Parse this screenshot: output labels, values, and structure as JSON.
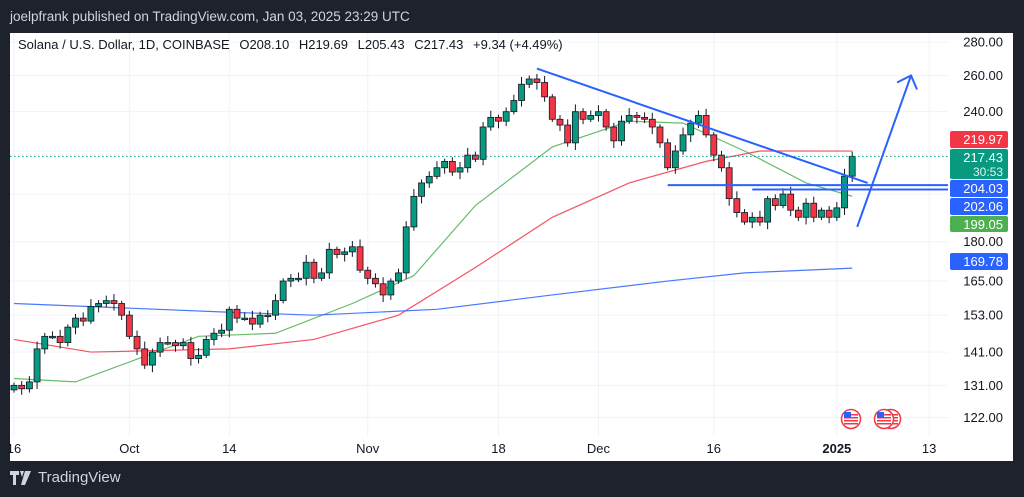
{
  "publisher_line": "joelpfrank published on TradingView.com, Jan 03, 2025 23:29 UTC",
  "legend": {
    "symbol": "Solana / U.S. Dollar, 1D, COINBASE",
    "open": "O208.10",
    "high": "H219.69",
    "low": "L205.43",
    "close": "C217.43",
    "change": "+9.34 (+4.49%)"
  },
  "footer": {
    "brand": "TradingView"
  },
  "colors": {
    "up": "#089981",
    "down": "#f23645",
    "ma_fast": "#4caf50",
    "ma_mid": "#f23645",
    "ma_slow": "#2962ff",
    "drawing": "#2962ff"
  },
  "chart_data": {
    "type": "candlestick",
    "scale": "log",
    "ylim": [
      118,
      290
    ],
    "grid": true,
    "first_date": "2024-09-16",
    "closes": [
      131,
      130,
      132,
      142,
      146,
      146,
      144,
      149,
      152,
      151,
      156,
      157,
      158,
      157,
      153,
      146,
      142,
      137,
      141,
      144,
      144,
      143,
      144,
      139,
      140,
      145,
      147,
      148,
      155,
      152,
      152,
      150,
      153,
      153,
      158,
      165,
      166,
      166,
      172,
      166,
      168,
      177,
      175,
      176,
      178,
      169,
      166,
      164,
      160,
      165,
      168,
      186,
      199,
      205,
      208,
      212,
      215,
      210,
      212,
      218,
      216,
      232,
      237,
      235,
      240,
      246,
      255,
      258,
      256,
      248,
      236,
      233,
      224,
      240,
      236,
      238,
      240,
      232,
      225,
      235,
      238,
      237,
      236,
      232,
      224,
      212,
      220,
      228,
      234,
      238,
      228,
      218,
      212,
      198,
      192,
      188,
      190,
      188,
      198,
      195,
      200,
      193,
      190,
      196,
      190,
      193,
      190,
      194,
      208.1,
      217.43
    ],
    "last_candle": {
      "date": "2025-01-03",
      "open": 208.1,
      "high": 219.69,
      "low": 205.43,
      "close": 217.43
    },
    "x_ticks": [
      {
        "label": "16",
        "date": "2024-09-16"
      },
      {
        "label": "Oct",
        "date": "2024-10-01"
      },
      {
        "label": "14",
        "date": "2024-10-14"
      },
      {
        "label": "Nov",
        "date": "2024-11-01"
      },
      {
        "label": "18",
        "date": "2024-11-18"
      },
      {
        "label": "Dec",
        "date": "2024-12-01"
      },
      {
        "label": "16",
        "date": "2024-12-16"
      },
      {
        "label": "2025",
        "date": "2025-01-01",
        "bold": true
      },
      {
        "label": "13",
        "date": "2025-01-13"
      }
    ],
    "y_ticks": [
      "280.00",
      "260.00",
      "240.00",
      "180.00",
      "165.00",
      "153.00",
      "141.00",
      "131.00",
      "122.00"
    ],
    "moving_averages": [
      {
        "color": "#4caf50",
        "points": [
          [
            "2024-09-16",
            133
          ],
          [
            "2024-09-24",
            132
          ],
          [
            "2024-10-10",
            146
          ],
          [
            "2024-10-20",
            147
          ],
          [
            "2024-10-30",
            157
          ],
          [
            "2024-11-07",
            167
          ],
          [
            "2024-11-15",
            195
          ],
          [
            "2024-11-25",
            222
          ],
          [
            "2024-12-05",
            235
          ],
          [
            "2024-12-12",
            234
          ],
          [
            "2024-12-20",
            220
          ],
          [
            "2024-12-28",
            205
          ],
          [
            "2025-01-03",
            199.05
          ]
        ]
      },
      {
        "color": "#f23645",
        "points": [
          [
            "2024-09-16",
            145
          ],
          [
            "2024-09-26",
            141
          ],
          [
            "2024-10-14",
            142
          ],
          [
            "2024-10-25",
            145
          ],
          [
            "2024-11-05",
            153
          ],
          [
            "2024-11-15",
            170
          ],
          [
            "2024-11-25",
            190
          ],
          [
            "2024-12-05",
            205
          ],
          [
            "2024-12-15",
            215
          ],
          [
            "2024-12-22",
            220
          ],
          [
            "2025-01-03",
            219.97
          ]
        ]
      },
      {
        "color": "#2962ff",
        "points": [
          [
            "2024-09-16",
            157
          ],
          [
            "2024-10-14",
            154
          ],
          [
            "2024-10-25",
            153
          ],
          [
            "2024-11-10",
            155
          ],
          [
            "2024-11-25",
            160
          ],
          [
            "2024-12-10",
            165
          ],
          [
            "2024-12-20",
            168
          ],
          [
            "2025-01-03",
            169.78
          ]
        ]
      }
    ],
    "price_badges": [
      {
        "value": "219.97",
        "color": "#f23645"
      },
      {
        "value": "217.43",
        "sub": "30:53",
        "color": "#089981"
      },
      {
        "value": "204.03",
        "color": "#2962ff"
      },
      {
        "value": "202.06",
        "color": "#2962ff"
      },
      {
        "value": "199.05",
        "color": "#4caf50"
      },
      {
        "value": "169.78",
        "color": "#2962ff"
      }
    ],
    "drawings": {
      "trendline": [
        [
          "2024-11-23",
          264
        ],
        [
          "2025-01-05",
          205
        ]
      ],
      "horizontal_lines": [
        {
          "from": "2024-12-10",
          "price": 204.03
        },
        {
          "from": "2024-12-21",
          "price": 202.06
        }
      ],
      "arrow": [
        [
          "2025-01-03",
          186
        ],
        [
          "2025-01-10",
          260
        ]
      ]
    },
    "event_icons": [
      "us-flag-icon",
      "us-flag-icon"
    ]
  }
}
